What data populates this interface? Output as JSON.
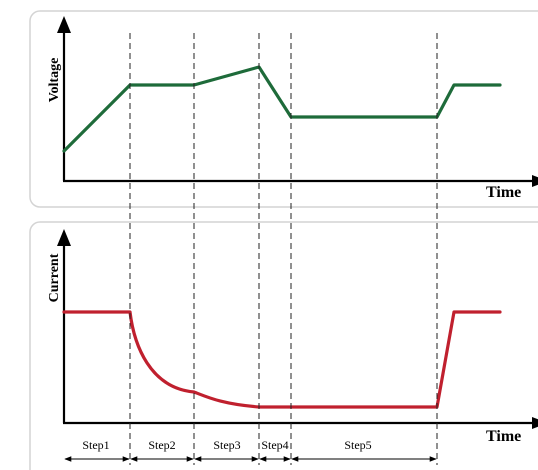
{
  "voltage_panel": {
    "ylabel": "Voltage",
    "xlabel": "Time",
    "line_color": "#1e6b3a"
  },
  "current_panel": {
    "ylabel": "Current",
    "xlabel": "Time",
    "line_color": "#c0202e"
  },
  "steps": [
    {
      "label": "Step1"
    },
    {
      "label": "Step2"
    },
    {
      "label": "Step3"
    },
    {
      "label": "Step4"
    },
    {
      "label": "Step5"
    }
  ],
  "icons": {
    "y_axis_head": "arrow-up-icon",
    "x_axis_head": "arrow-right-icon"
  }
}
